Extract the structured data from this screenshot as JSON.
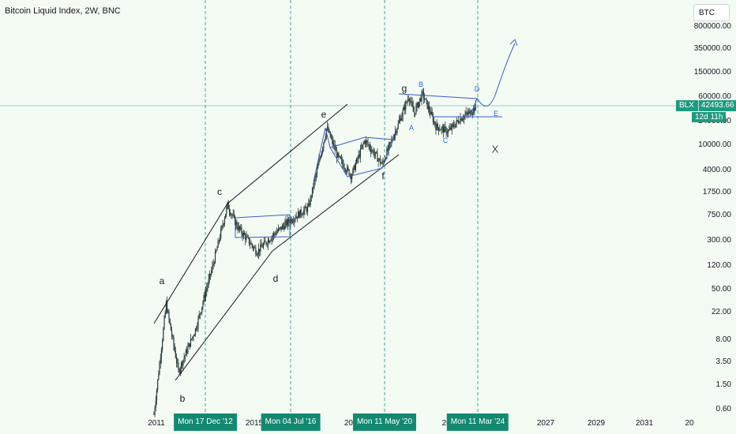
{
  "header": {
    "title": "Bitcoin Liquid Index, 2W, BNC"
  },
  "symbol_search": {
    "value": "BTC"
  },
  "price_badge": {
    "symbol": "BLX",
    "price": "42493.66",
    "countdown": "12d 11h"
  },
  "colors": {
    "background": "#f4fbf3",
    "candle": "#2a3b3a",
    "accent": "#1e9b81",
    "pattern": "#2962ff",
    "trend": "#131722"
  },
  "chart_data": {
    "type": "candlestick",
    "y_scale": "log",
    "ylim": [
      0.45,
      1100000
    ],
    "y_ticks": [
      "800000.00",
      "350000.00",
      "150000.00",
      "60000.00",
      "24000.00",
      "10000.00",
      "4000.00",
      "1750.00",
      "750.00",
      "300.00",
      "120.00",
      "50.00",
      "22.00",
      "8.00",
      "3.50",
      "1.50",
      "0.60"
    ],
    "x_ticks": [
      "2011",
      "2015",
      "2019",
      "202",
      "5",
      "2027",
      "2029",
      "2031",
      "20"
    ],
    "x_highlight_labels": [
      "Mon 17 Dec '12",
      "Mon 04 Jul '16",
      "Mon 11 May '20",
      "Mon 11 Mar '24"
    ],
    "last_price": 42493.66,
    "price_path": [
      {
        "date": "2010.9",
        "price": 0.5
      },
      {
        "date": "2011.4",
        "price": 30
      },
      {
        "date": "2011.9",
        "price": 2.5
      },
      {
        "date": "2012.6",
        "price": 12
      },
      {
        "date": "2013.3",
        "price": 120
      },
      {
        "date": "2013.9",
        "price": 1100
      },
      {
        "date": "2014.3",
        "price": 500
      },
      {
        "date": "2015.1",
        "price": 200
      },
      {
        "date": "2015.8",
        "price": 380
      },
      {
        "date": "2016.5",
        "price": 650
      },
      {
        "date": "2017.2",
        "price": 1000
      },
      {
        "date": "2017.95",
        "price": 19000
      },
      {
        "date": "2018.4",
        "price": 6500
      },
      {
        "date": "2018.95",
        "price": 3300
      },
      {
        "date": "2019.5",
        "price": 12000
      },
      {
        "date": "2020.2",
        "price": 5000
      },
      {
        "date": "2020.5",
        "price": 9500
      },
      {
        "date": "2021.0",
        "price": 30000
      },
      {
        "date": "2021.3",
        "price": 63000
      },
      {
        "date": "2021.5",
        "price": 32000
      },
      {
        "date": "2021.85",
        "price": 68000
      },
      {
        "date": "2022.4",
        "price": 20000
      },
      {
        "date": "2022.9",
        "price": 16500
      },
      {
        "date": "2023.4",
        "price": 27000
      },
      {
        "date": "2023.8",
        "price": 34000
      },
      {
        "date": "2024.05",
        "price": 42493.66
      }
    ],
    "wave_labels": [
      "a",
      "b",
      "c",
      "d",
      "e",
      "f",
      "g",
      "A",
      "B",
      "C",
      "D",
      "E",
      "X"
    ]
  }
}
